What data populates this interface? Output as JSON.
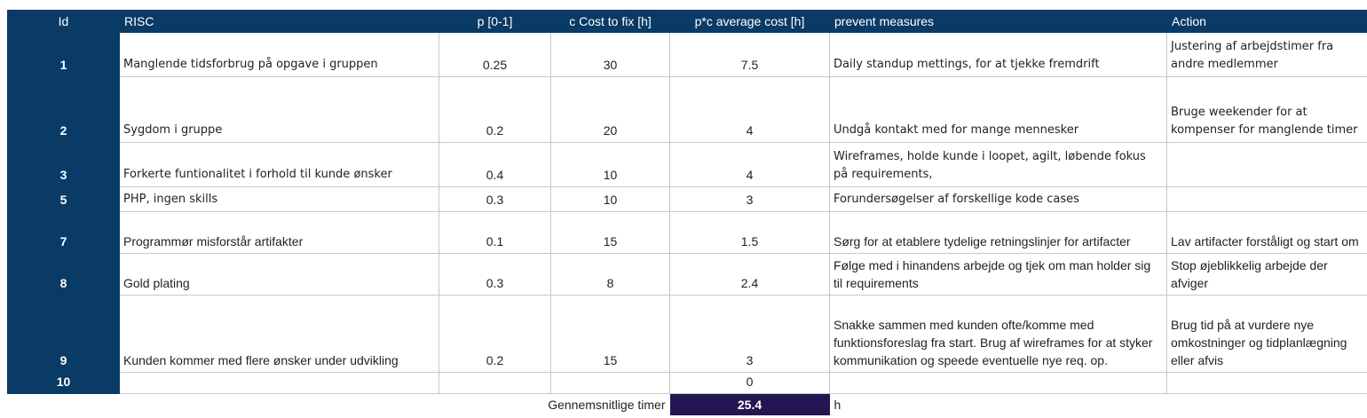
{
  "headers": {
    "id": "Id",
    "risc": "RISC",
    "p": "p  [0-1]",
    "c": "c  Cost to fix [h]",
    "pc": "p*c  average cost  [h]",
    "prevent": "prevent measures",
    "action": "Action"
  },
  "rows": [
    {
      "id": "1",
      "risc": "Manglende tidsforbrug  på opgave i gruppen",
      "p": "0.25",
      "c": "30",
      "pc": "7.5",
      "prevent": "Daily standup mettings, for at tjekke fremdrift",
      "action": "Justering af arbejdstimer fra andre medlemmer"
    },
    {
      "id": "2",
      "risc": "Sygdom i gruppe",
      "p": "0.2",
      "c": "20",
      "pc": "4",
      "prevent": "Undgå kontakt med for mange mennesker",
      "action": "Bruge weekender for at kompenser for manglende timer"
    },
    {
      "id": "3",
      "risc": "Forkerte funtionalitet i forhold til kunde ønsker",
      "p": "0.4",
      "c": "10",
      "pc": "4",
      "prevent": "Wireframes, holde kunde i loopet, agilt, løbende fokus på requirements,",
      "action": ""
    },
    {
      "id": "5",
      "risc": "PHP, ingen skills",
      "p": "0.3",
      "c": "10",
      "pc": "3",
      "prevent": "Forundersøgelser af forskellige kode cases",
      "action": ""
    },
    {
      "id": "7",
      "risc": "Programmør misforstår artifakter",
      "p": "0.1",
      "c": "15",
      "pc": "1.5",
      "prevent": "Sørg for at etablere tydelige retningslinjer for artifacter",
      "action": "Lav artifacter forståligt og start om"
    },
    {
      "id": "8",
      "risc": "Gold plating",
      "p": "0.3",
      "c": "8",
      "pc": "2.4",
      "prevent": "Følge med i hinandens arbejde og tjek om man holder sig til requirements",
      "action": "Stop øjeblikkelig arbejde der afviger"
    },
    {
      "id": "9",
      "risc": "Kunden kommer med flere ønsker under udvikling",
      "p": "0.2",
      "c": "15",
      "pc": "3",
      "prevent": "Snakke sammen med kunden ofte/komme med funktionsforeslag fra start. Brug af wireframes for at styker kommunikation og speede eventuelle nye req. op.",
      "action": "Brug tid på at vurdere nye omkostninger og tidplanlægning eller afvis"
    },
    {
      "id": "10",
      "risc": "",
      "p": "",
      "c": "",
      "pc": "0",
      "prevent": "",
      "action": ""
    }
  ],
  "footer": {
    "label": "Gennemsnitlige timer",
    "total": "25.4",
    "unit": "h"
  }
}
